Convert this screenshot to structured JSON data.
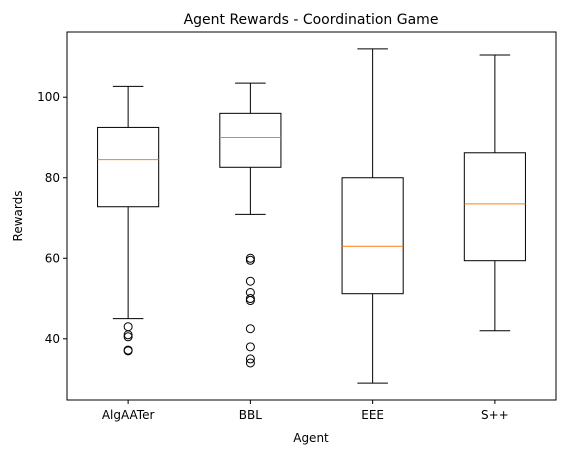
{
  "chart_data": {
    "type": "box",
    "title": "Agent Rewards - Coordination Game",
    "xlabel": "Agent",
    "ylabel": "Rewards",
    "ylim": [
      24.8,
      116.2
    ],
    "yticks": [
      40,
      60,
      80,
      100
    ],
    "grid": false,
    "legend": "none",
    "colors": {
      "box": "#000000",
      "median": "#ff7f0e"
    },
    "categories": [
      "AlgAATer",
      "BBL",
      "EEE",
      "S++"
    ],
    "boxes": [
      {
        "label": "AlgAATer",
        "whisker_low": 45.0,
        "q1": 72.8,
        "median": 84.5,
        "q3": 92.5,
        "whisker_high": 102.7,
        "fliers": [
          43.0,
          41.0,
          40.5,
          37.2,
          37.0
        ]
      },
      {
        "label": "BBL",
        "whisker_low": 70.9,
        "q1": 82.6,
        "median": 90.0,
        "q3": 96.0,
        "whisker_high": 103.5,
        "fliers": [
          60.0,
          59.5,
          54.3,
          51.5,
          50.0,
          49.5,
          42.5,
          38.0,
          35.0,
          34.0
        ]
      },
      {
        "label": "EEE",
        "whisker_low": 29.0,
        "q1": 51.2,
        "median": 63.0,
        "q3": 80.0,
        "whisker_high": 112.0,
        "fliers": []
      },
      {
        "label": "S++",
        "whisker_low": 42.0,
        "q1": 59.4,
        "median": 73.5,
        "q3": 86.2,
        "whisker_high": 110.5,
        "fliers": []
      }
    ]
  }
}
